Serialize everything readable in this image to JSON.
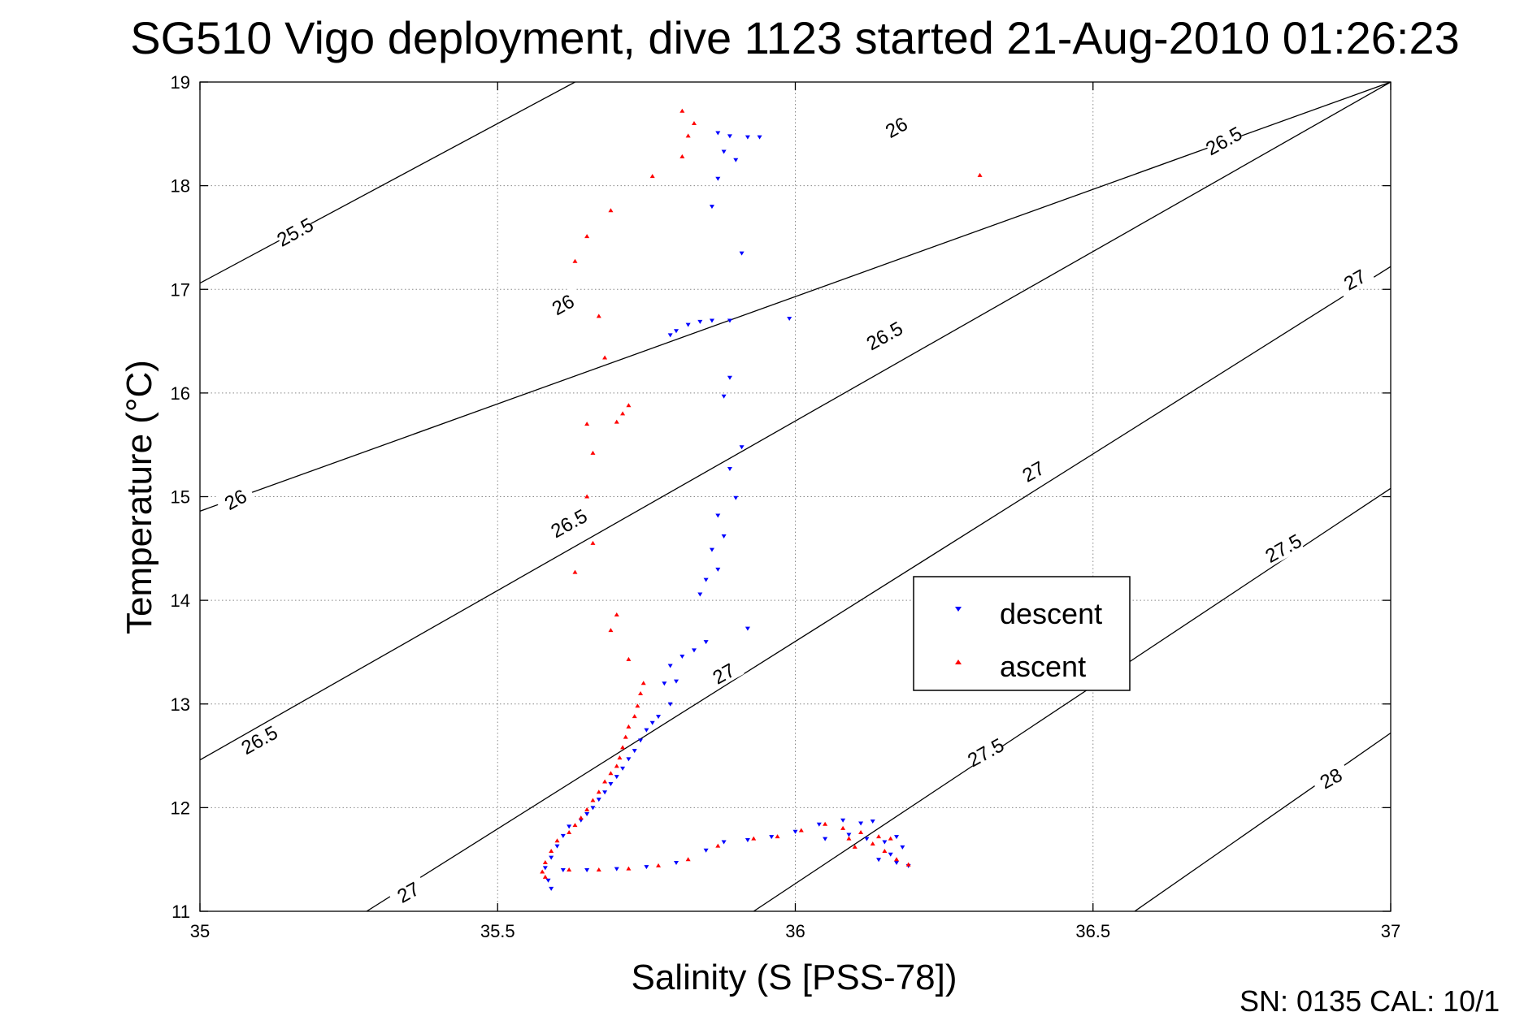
{
  "chart_data": {
    "type": "scatter",
    "title": "SG510 Vigo deployment, dive 1123 started 21-Aug-2010 01:26:23",
    "xlabel": "Salinity (S [PSS-78])",
    "ylabel": "Temperature (°C)",
    "xlim": [
      35,
      37
    ],
    "ylim": [
      11,
      19
    ],
    "x_ticks": [
      35,
      35.5,
      36,
      36.5,
      37
    ],
    "x_tick_labels": [
      "35",
      "35.5",
      "36",
      "36.5",
      "37"
    ],
    "y_ticks": [
      11,
      12,
      13,
      14,
      15,
      16,
      17,
      18,
      19
    ],
    "y_tick_labels": [
      "11",
      "12",
      "13",
      "14",
      "15",
      "16",
      "17",
      "18",
      "19"
    ],
    "grid": true,
    "legend_position": "center-right",
    "footer": "SN: 0135  CAL: 10/1",
    "series": [
      {
        "name": "descent",
        "color": "#0000ff",
        "marker": "triangle-down",
        "points": [
          [
            35.87,
            18.51
          ],
          [
            35.89,
            18.48
          ],
          [
            35.92,
            18.47
          ],
          [
            35.94,
            18.47
          ],
          [
            35.88,
            18.33
          ],
          [
            35.9,
            18.25
          ],
          [
            35.87,
            18.07
          ],
          [
            35.86,
            17.8
          ],
          [
            35.91,
            17.35
          ],
          [
            35.79,
            16.56
          ],
          [
            35.8,
            16.6
          ],
          [
            35.82,
            16.66
          ],
          [
            35.84,
            16.69
          ],
          [
            35.86,
            16.7
          ],
          [
            35.89,
            16.7
          ],
          [
            35.99,
            16.72
          ],
          [
            35.89,
            16.15
          ],
          [
            35.88,
            15.97
          ],
          [
            35.91,
            15.48
          ],
          [
            35.89,
            15.27
          ],
          [
            35.9,
            14.99
          ],
          [
            35.87,
            14.82
          ],
          [
            35.88,
            14.62
          ],
          [
            35.86,
            14.49
          ],
          [
            35.87,
            14.3
          ],
          [
            35.85,
            14.2
          ],
          [
            35.84,
            14.06
          ],
          [
            35.92,
            13.73
          ],
          [
            35.85,
            13.6
          ],
          [
            35.83,
            13.52
          ],
          [
            35.81,
            13.46
          ],
          [
            35.79,
            13.37
          ],
          [
            35.8,
            13.22
          ],
          [
            35.78,
            13.2
          ],
          [
            35.79,
            13.0
          ],
          [
            35.77,
            12.88
          ],
          [
            35.76,
            12.82
          ],
          [
            35.75,
            12.75
          ],
          [
            35.74,
            12.65
          ],
          [
            35.73,
            12.55
          ],
          [
            35.72,
            12.47
          ],
          [
            35.71,
            12.38
          ],
          [
            35.7,
            12.3
          ],
          [
            35.69,
            12.23
          ],
          [
            35.68,
            12.15
          ],
          [
            35.67,
            12.08
          ],
          [
            35.66,
            12.0
          ],
          [
            35.65,
            11.94
          ],
          [
            35.64,
            11.88
          ],
          [
            35.62,
            11.82
          ],
          [
            35.61,
            11.73
          ],
          [
            35.6,
            11.63
          ],
          [
            35.59,
            11.52
          ],
          [
            35.58,
            11.42
          ],
          [
            35.585,
            11.3
          ],
          [
            35.59,
            11.22
          ],
          [
            35.61,
            11.4
          ],
          [
            35.65,
            11.4
          ],
          [
            35.7,
            11.41
          ],
          [
            35.75,
            11.43
          ],
          [
            35.8,
            11.47
          ],
          [
            35.85,
            11.59
          ],
          [
            35.88,
            11.67
          ],
          [
            35.92,
            11.69
          ],
          [
            35.96,
            11.72
          ],
          [
            36.0,
            11.77
          ],
          [
            36.04,
            11.84
          ],
          [
            36.08,
            11.88
          ],
          [
            36.11,
            11.85
          ],
          [
            36.13,
            11.87
          ],
          [
            36.05,
            11.7
          ],
          [
            36.09,
            11.74
          ],
          [
            36.12,
            11.7
          ],
          [
            36.15,
            11.67
          ],
          [
            36.17,
            11.72
          ],
          [
            36.18,
            11.62
          ],
          [
            36.16,
            11.55
          ],
          [
            36.14,
            11.5
          ],
          [
            36.17,
            11.47
          ],
          [
            36.19,
            11.44
          ]
        ]
      },
      {
        "name": "ascent",
        "color": "#ff0000",
        "marker": "triangle-up",
        "points": [
          [
            35.81,
            18.72
          ],
          [
            35.83,
            18.6
          ],
          [
            35.82,
            18.48
          ],
          [
            35.81,
            18.28
          ],
          [
            35.76,
            18.09
          ],
          [
            36.31,
            18.1
          ],
          [
            35.69,
            17.76
          ],
          [
            35.65,
            17.51
          ],
          [
            35.63,
            17.27
          ],
          [
            35.67,
            16.74
          ],
          [
            35.68,
            16.34
          ],
          [
            35.72,
            15.88
          ],
          [
            35.71,
            15.8
          ],
          [
            35.7,
            15.72
          ],
          [
            35.65,
            15.7
          ],
          [
            35.66,
            15.42
          ],
          [
            35.65,
            15.0
          ],
          [
            35.66,
            14.55
          ],
          [
            35.63,
            14.27
          ],
          [
            35.7,
            13.86
          ],
          [
            35.69,
            13.71
          ],
          [
            35.72,
            13.43
          ],
          [
            35.745,
            13.2
          ],
          [
            35.74,
            13.1
          ],
          [
            35.735,
            12.98
          ],
          [
            35.73,
            12.88
          ],
          [
            35.72,
            12.78
          ],
          [
            35.715,
            12.68
          ],
          [
            35.71,
            12.58
          ],
          [
            35.705,
            12.48
          ],
          [
            35.7,
            12.4
          ],
          [
            35.69,
            12.33
          ],
          [
            35.68,
            12.25
          ],
          [
            35.67,
            12.15
          ],
          [
            35.66,
            12.07
          ],
          [
            35.65,
            11.98
          ],
          [
            35.64,
            11.9
          ],
          [
            35.63,
            11.83
          ],
          [
            35.62,
            11.76
          ],
          [
            35.6,
            11.68
          ],
          [
            35.59,
            11.58
          ],
          [
            35.58,
            11.47
          ],
          [
            35.575,
            11.38
          ],
          [
            35.58,
            11.33
          ],
          [
            35.62,
            11.4
          ],
          [
            35.67,
            11.4
          ],
          [
            35.72,
            11.41
          ],
          [
            35.77,
            11.44
          ],
          [
            35.82,
            11.5
          ],
          [
            35.87,
            11.63
          ],
          [
            35.93,
            11.7
          ],
          [
            35.97,
            11.72
          ],
          [
            36.01,
            11.78
          ],
          [
            36.05,
            11.84
          ],
          [
            36.08,
            11.8
          ],
          [
            36.09,
            11.7
          ],
          [
            36.1,
            11.62
          ],
          [
            36.13,
            11.65
          ],
          [
            36.15,
            11.58
          ],
          [
            36.17,
            11.5
          ],
          [
            36.19,
            11.45
          ],
          [
            36.16,
            11.7
          ],
          [
            36.14,
            11.72
          ],
          [
            36.11,
            11.76
          ]
        ]
      }
    ],
    "contour_labels": [
      "25.5",
      "26",
      "26",
      "26",
      "26.5",
      "26.5",
      "26.5",
      "26.5",
      "27",
      "27",
      "27",
      "27",
      "27.5",
      "27.5",
      "28"
    ]
  }
}
